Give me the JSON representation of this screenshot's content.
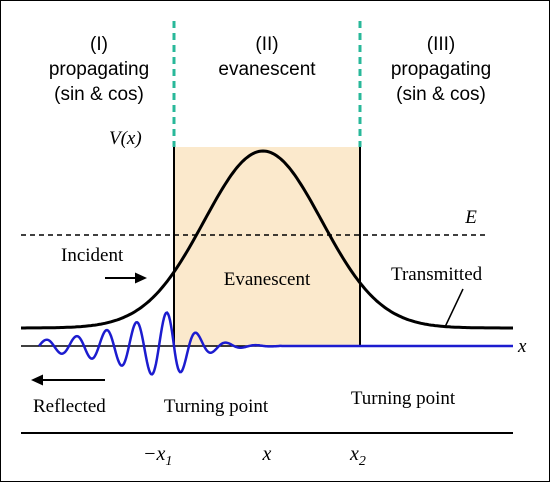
{
  "regions": [
    {
      "roman": "(I)",
      "line1": "propagating",
      "line2": "(sin & cos)"
    },
    {
      "roman": "(II)",
      "line1": "evanescent",
      "line2": ""
    },
    {
      "roman": "(III)",
      "line1": "propagating",
      "line2": "(sin & cos)"
    }
  ],
  "potential_label": "V(x)",
  "energy_label": "E",
  "axis_label": "x",
  "labels": {
    "incident": "Incident",
    "evanescent": "Evanescent",
    "transmitted": "Transmitted",
    "reflected": "Reflected",
    "turning_point_left": "Turning point",
    "turning_point_right": "Turning point"
  },
  "bottom_axis": {
    "left_tick": "−x",
    "left_tick_sub": "1",
    "center": "x",
    "right_tick": "x",
    "right_tick_sub": "2"
  },
  "colors": {
    "barrier_fill": "#fbe9cc",
    "divider": "#29b89a",
    "wave": "#1c1ccf",
    "curve": "#000000"
  }
}
